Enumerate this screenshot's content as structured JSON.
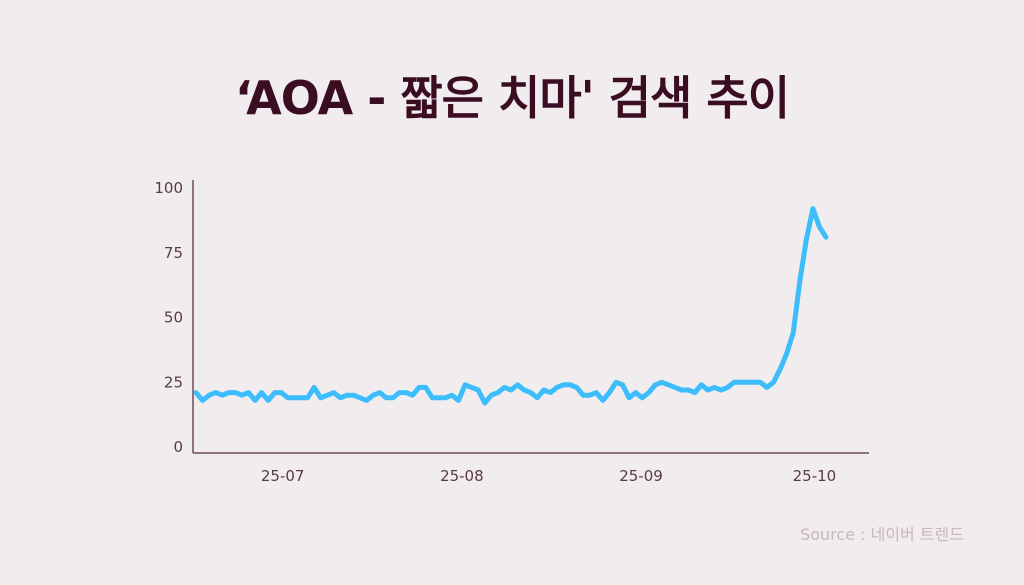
{
  "title": "‘AOA - 짧은 치마' 검색 추이",
  "source": "Source : 네이버 트렌드",
  "colors": {
    "line": "#3dbdfb",
    "axis": "#6e4a5a",
    "title": "#3a0d22",
    "background": "#f1ecee"
  },
  "chart_data": {
    "type": "line",
    "title": "‘AOA - 짧은 치마' 검색 추이",
    "xlabel": "",
    "ylabel": "",
    "ylim": [
      0,
      100
    ],
    "yticks": [
      "0",
      "25",
      "50",
      "75",
      "100"
    ],
    "xticks": [
      "25-07",
      "25-08",
      "25-09",
      "25-10"
    ],
    "grid": false,
    "x_start": "2025-06-16",
    "x_end": "2025-10-03",
    "series": [
      {
        "values": [
          21,
          18,
          20,
          21,
          20,
          21,
          21,
          20,
          21,
          18,
          21,
          18,
          21,
          21,
          19,
          19,
          19,
          19,
          23,
          19,
          20,
          21,
          19,
          20,
          20,
          19,
          18,
          20,
          21,
          19,
          19,
          21,
          21,
          20,
          23,
          23,
          19,
          19,
          19,
          20,
          18,
          24,
          23,
          22,
          17,
          20,
          21,
          23,
          22,
          24,
          22,
          21,
          19,
          22,
          21,
          23,
          24,
          24,
          23,
          20,
          20,
          21,
          18,
          21,
          25,
          24,
          19,
          21,
          19,
          21,
          24,
          25,
          24,
          23,
          22,
          22,
          21,
          24,
          22,
          23,
          22,
          23,
          25,
          25,
          25,
          25,
          25,
          23,
          25,
          30,
          36,
          44,
          64,
          80,
          92,
          85,
          81
        ]
      }
    ]
  }
}
